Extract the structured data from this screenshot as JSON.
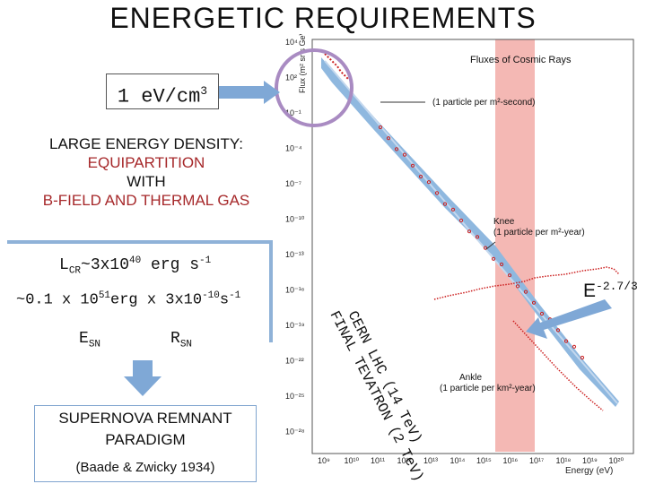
{
  "title": "ENERGETIC REQUIREMENTS",
  "energy_box": {
    "value": "1 eV/cm",
    "exp": "3"
  },
  "lede": {
    "line1": "LARGE ENERGY DENSITY:",
    "line2": "EQUIPARTITION",
    "line3": "WITH",
    "line4": "B-FIELD AND THERMAL GAS"
  },
  "luminosity": {
    "prefix": "L",
    "sub": "CR",
    "mid": "~3x10",
    "exp": "40",
    "unit": " erg s",
    "unit_exp": "-1"
  },
  "formula": {
    "a": "~0.1 x 10",
    "a_exp": "51",
    "b": "erg x 3x10",
    "b_exp": "-10",
    "c": "s",
    "c_exp": "-1"
  },
  "esn": {
    "base": "E",
    "sub": "SN"
  },
  "rsn": {
    "base": "R",
    "sub": "SN"
  },
  "paradigm": {
    "line1": "SUPERNOVA REMNANT",
    "line2": "PARADIGM",
    "line3": "(Baade & Zwicky 1934)"
  },
  "spectral_index": {
    "base": "E",
    "exp": "-2.7/3"
  },
  "chart": {
    "title": "Fluxes of Cosmic Rays",
    "ylabel": "Flux (m² sr s GeV)⁻¹",
    "xlabel": "Energy (eV)",
    "yticks": [
      "10⁴",
      "10²",
      "10⁻¹",
      "10⁻⁴",
      "10⁻⁷",
      "10⁻¹⁰",
      "10⁻¹³",
      "10⁻¹⁶",
      "10⁻¹⁹",
      "10⁻²²",
      "10⁻²⁵",
      "10⁻²⁸"
    ],
    "xticks": [
      "10⁹",
      "10¹⁰",
      "10¹¹",
      "10¹²",
      "10¹³",
      "10¹⁴",
      "10¹⁵",
      "10¹⁶",
      "10¹⁷",
      "10¹⁸",
      "10¹⁹",
      "10²⁰"
    ],
    "ann_top": "(1 particle per m²-second)",
    "ann_knee_1": "Knee",
    "ann_knee_2": "(1 particle per m²-year)",
    "ann_ankle_1": "Ankle",
    "ann_ankle_2": "(1 particle per km²-year)",
    "lhc_label": "CERN LHC (14 TeV)",
    "fin_label": "FINAL TEVATRON (2 TeV)",
    "colors": {
      "band": "#f4b8b4",
      "spectrum": "#8fb8df",
      "data": "#cc2020",
      "circle": "#a98bc2",
      "arrow": "#7fa8d6"
    }
  }
}
